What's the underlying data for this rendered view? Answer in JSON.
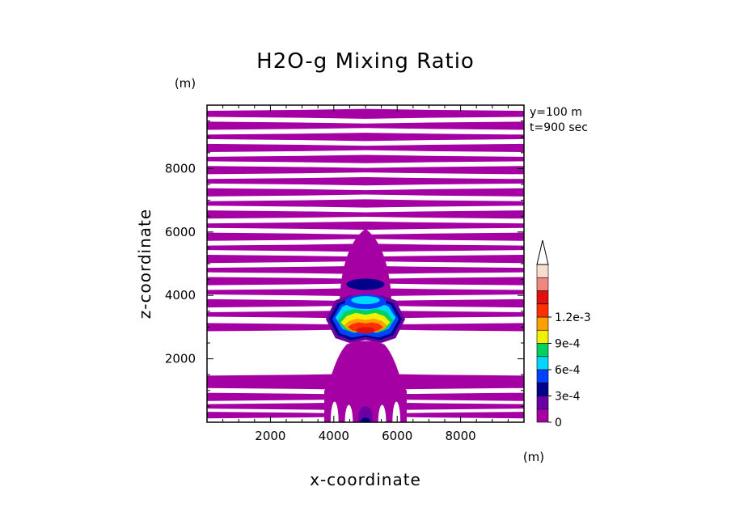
{
  "chart_data": {
    "type": "heatmap",
    "title": "H2O-g Mixing Ratio",
    "xlabel": "x-coordinate",
    "ylabel": "z-coordinate",
    "x_unit": "(m)",
    "y_unit": "(m)",
    "xlim": [
      0,
      10000
    ],
    "ylim": [
      0,
      10000
    ],
    "x_ticks": [
      2000,
      4000,
      6000,
      8000
    ],
    "y_ticks": [
      2000,
      4000,
      6000,
      8000
    ],
    "annotations": [
      "y=100 m",
      "t=900 sec"
    ],
    "colorbar": {
      "levels": [
        0,
        0.00015,
        0.0003,
        0.00045,
        0.0006,
        0.00075,
        0.0009,
        0.00105,
        0.0012,
        0.00135
      ],
      "tick_values": [
        0,
        0.0003,
        0.0006,
        0.0009,
        0.0012
      ],
      "tick_labels": [
        "0",
        "3e-4",
        "6e-4",
        "9e-4",
        "1.2e-3"
      ],
      "colors": [
        "#a400a4",
        "#6a00a4",
        "#00008b",
        "#0040ff",
        "#00d7ff",
        "#00d060",
        "#f0f000",
        "#ffa000",
        "#ff3000",
        "#e01010",
        "#f08880",
        "#f8dcd0"
      ],
      "extend": "max"
    },
    "features": {
      "background_bands_z": [
        [
          9600,
          9850
        ],
        [
          9250,
          9450
        ],
        [
          8900,
          9100
        ],
        [
          8550,
          8750
        ],
        [
          8200,
          8400
        ],
        [
          7850,
          8050
        ],
        [
          7500,
          7700
        ],
        [
          7150,
          7350
        ],
        [
          6800,
          7000
        ],
        [
          6450,
          6650
        ],
        [
          6100,
          6300
        ],
        [
          5750,
          5950
        ],
        [
          5400,
          5600
        ],
        [
          5050,
          5250
        ],
        [
          4700,
          4900
        ],
        [
          4350,
          4550
        ],
        [
          4000,
          4200
        ],
        [
          3650,
          3850
        ],
        [
          3300,
          3500
        ],
        [
          2900,
          3100
        ],
        [
          1050,
          1500
        ],
        [
          700,
          900
        ],
        [
          400,
          600
        ],
        [
          150,
          300
        ]
      ],
      "plume_center_x": 5000,
      "core_max_z_range": [
        2800,
        3300
      ],
      "base_mound_top_z": 2500
    }
  }
}
